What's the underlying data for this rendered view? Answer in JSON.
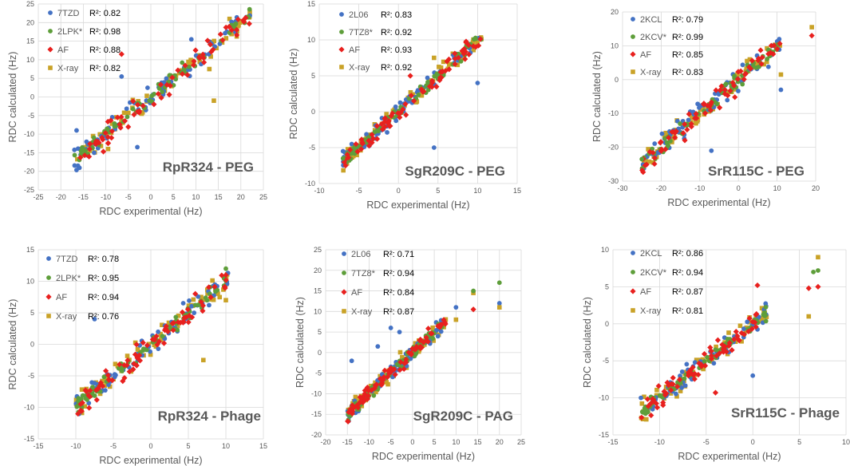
{
  "colors": {
    "blue": "#4472C4",
    "green": "#5E9E3A",
    "red": "#E8201E",
    "gold": "#C9A227",
    "grid": "#d9d9d9",
    "axis": "#595959"
  },
  "chart_data": [
    {
      "type": "scatter",
      "title": "RpR324 - PEG",
      "xlabel": "RDC experimental (Hz)",
      "ylabel": "RDC calculated (Hz)",
      "xlim": [
        -25,
        25
      ],
      "ylim": [
        -25,
        25
      ],
      "xticks": [
        -25,
        -20,
        -15,
        -10,
        -5,
        0,
        5,
        10,
        15,
        20,
        25
      ],
      "yticks": [
        -25,
        -20,
        -15,
        -10,
        -5,
        0,
        5,
        10,
        15,
        20,
        25
      ],
      "series": [
        {
          "name": "7TZD",
          "r2_label": "R²: 0.82",
          "color": "#4472C4",
          "marker": "circle"
        },
        {
          "name": "2LPK*",
          "r2_label": "R²: 0.98",
          "color": "#5E9E3A",
          "marker": "circle"
        },
        {
          "name": "AF",
          "r2_label": "R²: 0.88",
          "color": "#E8201E",
          "marker": "diamond"
        },
        {
          "name": "X-ray",
          "r2_label": "R²: 0.82",
          "color": "#C9A227",
          "marker": "square"
        }
      ],
      "trend": {
        "xmin": -17,
        "xmax": 22,
        "noise": 2.6,
        "n": 70
      },
      "extra_points": [
        {
          "s": 0,
          "x": -16.5,
          "y": -9
        },
        {
          "s": 0,
          "x": -6.5,
          "y": 5.5
        },
        {
          "s": 0,
          "x": -3,
          "y": -13.5
        },
        {
          "s": 2,
          "x": -6.5,
          "y": 11.5
        },
        {
          "s": 3,
          "x": -9.5,
          "y": -14
        },
        {
          "s": 3,
          "x": 14,
          "y": -1
        },
        {
          "s": 3,
          "x": 13,
          "y": 7.5
        },
        {
          "s": 0,
          "x": 9,
          "y": 15.5
        }
      ]
    },
    {
      "type": "scatter",
      "title": "SgR209C - PEG",
      "xlabel": "RDC experimental (Hz)",
      "ylabel": "RDC calculated (Hz)",
      "xlim": [
        -10,
        15
      ],
      "ylim": [
        -10,
        15
      ],
      "xticks": [
        -10,
        -5,
        0,
        5,
        10,
        15
      ],
      "yticks": [
        -10,
        -5,
        0,
        5,
        10,
        15
      ],
      "series": [
        {
          "name": "2L06",
          "r2_label": "R²: 0.83",
          "color": "#4472C4",
          "marker": "circle"
        },
        {
          "name": "7TZ8*",
          "r2_label": "R²: 0.92",
          "color": "#5E9E3A",
          "marker": "circle"
        },
        {
          "name": "AF",
          "r2_label": "R²: 0.93",
          "color": "#E8201E",
          "marker": "diamond"
        },
        {
          "name": "X-ray",
          "r2_label": "R²: 0.92",
          "color": "#C9A227",
          "marker": "square"
        }
      ],
      "trend": {
        "xmin": -7,
        "xmax": 10.5,
        "noise": 1.1,
        "n": 75
      },
      "extra_points": [
        {
          "s": 0,
          "x": 4.5,
          "y": -5
        },
        {
          "s": 0,
          "x": 10,
          "y": 4
        },
        {
          "s": 0,
          "x": -7,
          "y": -5.5
        },
        {
          "s": 1,
          "x": -7,
          "y": -6.5
        },
        {
          "s": 3,
          "x": 4.5,
          "y": 7.5
        },
        {
          "s": 2,
          "x": 1.5,
          "y": 5
        }
      ]
    },
    {
      "type": "scatter",
      "title": "SrR115C - PEG",
      "xlabel": "RDC experimental (Hz)",
      "ylabel": "RDC calculated (Hz)",
      "xlim": [
        -30,
        20
      ],
      "ylim": [
        -30,
        20
      ],
      "xticks": [
        -30,
        -20,
        -10,
        0,
        10,
        20
      ],
      "yticks": [
        -30,
        -20,
        -10,
        0,
        10,
        20
      ],
      "series": [
        {
          "name": "2KCL",
          "r2_label": "R²: 0.79",
          "color": "#4472C4",
          "marker": "circle"
        },
        {
          "name": "2KCV*",
          "r2_label": "R²: 0.99",
          "color": "#5E9E3A",
          "marker": "circle"
        },
        {
          "name": "AF",
          "r2_label": "R²: 0.85",
          "color": "#E8201E",
          "marker": "diamond"
        },
        {
          "name": "X-ray",
          "r2_label": "R²: 0.83",
          "color": "#C9A227",
          "marker": "square"
        }
      ],
      "trend": {
        "xmin": -25,
        "xmax": 11,
        "noise": 2.8,
        "n": 70
      },
      "extra_points": [
        {
          "s": 1,
          "x": -25,
          "y": -23.5
        },
        {
          "s": 3,
          "x": 19,
          "y": 15.5
        },
        {
          "s": 2,
          "x": 19,
          "y": 13
        },
        {
          "s": 0,
          "x": -7,
          "y": -21
        },
        {
          "s": 0,
          "x": 11,
          "y": -3
        },
        {
          "s": 3,
          "x": 11,
          "y": 1.5
        }
      ]
    },
    {
      "type": "scatter",
      "title": "RpR324 - Phage",
      "xlabel": "RDC experimental (Hz)",
      "ylabel": "RDC calculated (Hz)",
      "xlim": [
        -15,
        15
      ],
      "ylim": [
        -15,
        15
      ],
      "xticks": [
        -15,
        -10,
        -5,
        0,
        5,
        10,
        15
      ],
      "yticks": [
        -15,
        -10,
        -5,
        0,
        5,
        10,
        15
      ],
      "series": [
        {
          "name": "7TZD",
          "r2_label": "R²: 0.78",
          "color": "#4472C4",
          "marker": "circle"
        },
        {
          "name": "2LPK*",
          "r2_label": "R²: 0.95",
          "color": "#5E9E3A",
          "marker": "circle"
        },
        {
          "name": "AF",
          "r2_label": "R²: 0.94",
          "color": "#E8201E",
          "marker": "diamond"
        },
        {
          "name": "X-ray",
          "r2_label": "R²: 0.76",
          "color": "#C9A227",
          "marker": "square"
        }
      ],
      "trend": {
        "xmin": -10,
        "xmax": 10.5,
        "noise": 1.5,
        "n": 75
      },
      "extra_points": [
        {
          "s": 2,
          "x": 10,
          "y": 11
        },
        {
          "s": 1,
          "x": 10,
          "y": 12
        },
        {
          "s": 3,
          "x": 7,
          "y": -2.5
        },
        {
          "s": 0,
          "x": -7.5,
          "y": 4
        },
        {
          "s": 3,
          "x": 10,
          "y": 7
        }
      ]
    },
    {
      "type": "scatter",
      "title": "SgR209C - PAG",
      "xlabel": "RDC experimental (Hz)",
      "ylabel": "RDC calculated (Hz)",
      "xlim": [
        -20,
        25
      ],
      "ylim": [
        -20,
        25
      ],
      "xticks": [
        -20,
        -15,
        -10,
        -5,
        0,
        5,
        10,
        15,
        20,
        25
      ],
      "yticks": [
        -20,
        -15,
        -10,
        -5,
        0,
        5,
        10,
        15,
        20,
        25
      ],
      "series": [
        {
          "name": "2L06",
          "r2_label": "R²: 0.71",
          "color": "#4472C4",
          "marker": "circle"
        },
        {
          "name": "7TZ8*",
          "r2_label": "R²: 0.94",
          "color": "#5E9E3A",
          "marker": "circle"
        },
        {
          "name": "AF",
          "r2_label": "R²: 0.84",
          "color": "#E8201E",
          "marker": "diamond"
        },
        {
          "name": "X-ray",
          "r2_label": "R²: 0.87",
          "color": "#C9A227",
          "marker": "square"
        }
      ],
      "trend": {
        "xmin": -15,
        "xmax": 8,
        "noise": 1.7,
        "n": 80
      },
      "extra_points": [
        {
          "s": 0,
          "x": -14,
          "y": -2
        },
        {
          "s": 0,
          "x": -8,
          "y": 1.5
        },
        {
          "s": 1,
          "x": 20,
          "y": 17
        },
        {
          "s": 0,
          "x": 20,
          "y": 12
        },
        {
          "s": 3,
          "x": 20,
          "y": 11
        },
        {
          "s": 3,
          "x": 14,
          "y": 14.5
        },
        {
          "s": 1,
          "x": 14,
          "y": 15
        },
        {
          "s": 2,
          "x": 14,
          "y": 10.5
        },
        {
          "s": 0,
          "x": 10,
          "y": 11
        },
        {
          "s": 3,
          "x": 10,
          "y": 8
        },
        {
          "s": 0,
          "x": -5,
          "y": 6
        },
        {
          "s": 0,
          "x": -3,
          "y": 5
        }
      ]
    },
    {
      "type": "scatter",
      "title": "SrR115C - Phage",
      "xlabel": "RDC experimental (Hz)",
      "ylabel": "RDC calculated (Hz)",
      "xlim": [
        -15,
        10
      ],
      "ylim": [
        -15,
        10
      ],
      "xticks": [
        -15,
        -10,
        -5,
        0,
        5,
        10
      ],
      "yticks": [
        -15,
        -10,
        -5,
        0,
        5,
        10
      ],
      "series": [
        {
          "name": "2KCL",
          "r2_label": "R²: 0.86",
          "color": "#4472C4",
          "marker": "circle"
        },
        {
          "name": "2KCV*",
          "r2_label": "R²: 0.94",
          "color": "#5E9E3A",
          "marker": "circle"
        },
        {
          "name": "AF",
          "r2_label": "R²: 0.87",
          "color": "#E8201E",
          "marker": "diamond"
        },
        {
          "name": "X-ray",
          "r2_label": "R²: 0.81",
          "color": "#C9A227",
          "marker": "square"
        }
      ],
      "trend": {
        "xmin": -12,
        "xmax": 1.5,
        "noise": 1.2,
        "n": 70
      },
      "extra_points": [
        {
          "s": 3,
          "x": 7,
          "y": 9
        },
        {
          "s": 1,
          "x": 6.5,
          "y": 7
        },
        {
          "s": 1,
          "x": 7,
          "y": 7.2
        },
        {
          "s": 2,
          "x": 6,
          "y": 4.8
        },
        {
          "s": 2,
          "x": 7,
          "y": 5
        },
        {
          "s": 3,
          "x": 6,
          "y": 1
        },
        {
          "s": 2,
          "x": 0.5,
          "y": 5.2
        },
        {
          "s": 0,
          "x": 0,
          "y": -7
        },
        {
          "s": 2,
          "x": -4,
          "y": -9.3
        },
        {
          "s": 0,
          "x": -12,
          "y": -10
        }
      ]
    }
  ]
}
